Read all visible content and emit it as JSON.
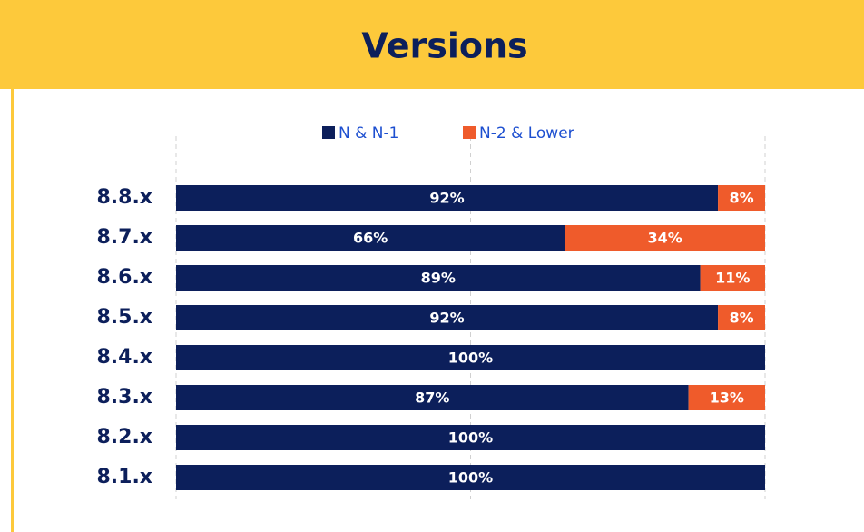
{
  "chart_data": {
    "type": "stacked-bar-horizontal",
    "title": "Versions",
    "categories": [
      "8.8.x",
      "8.7.x",
      "8.6.x",
      "8.5.x",
      "8.4.x",
      "8.3.x",
      "8.2.x",
      "8.1.x"
    ],
    "series": [
      {
        "name": "N & N-1",
        "color": "#0c1f5b",
        "values": [
          92,
          66,
          89,
          92,
          100,
          87,
          100,
          100
        ],
        "value_labels": [
          "92%",
          "66%",
          "89%",
          "92%",
          "100%",
          "87%",
          "100%",
          "100%"
        ]
      },
      {
        "name": "N-2 & Lower",
        "color": "#ef5b2b",
        "values": [
          8,
          34,
          11,
          8,
          0,
          13,
          0,
          0
        ],
        "value_labels": [
          "8%",
          "34%",
          "11%",
          "8%",
          null,
          "13%",
          null,
          null
        ]
      }
    ],
    "xlim": [
      0,
      100
    ],
    "xticks": [
      0,
      50,
      100
    ],
    "grid": true
  }
}
